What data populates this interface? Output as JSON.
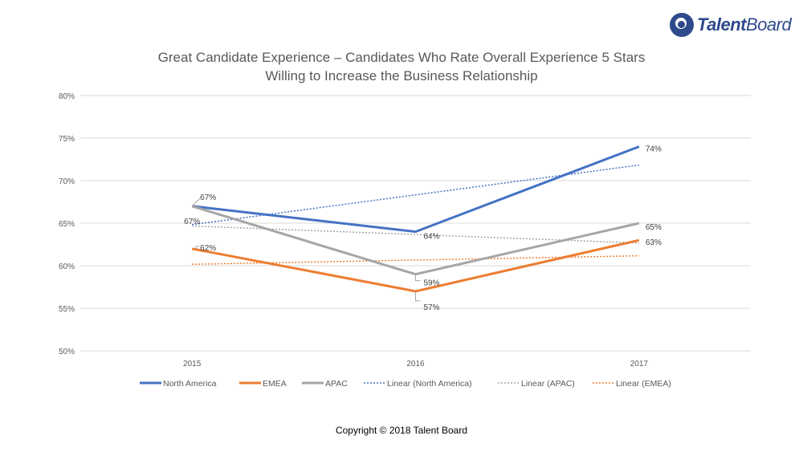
{
  "logo": {
    "bold": "Talent",
    "light": "Board"
  },
  "copyright": "Copyright © 2018 Talent Board",
  "chart_data": {
    "type": "line",
    "title": "Great Candidate Experience – Candidates Who Rate Overall Experience 5 Stars",
    "subtitle": "Willing to Increase the Business Relationship",
    "xlabel": "",
    "ylabel": "",
    "categories": [
      "2015",
      "2016",
      "2017"
    ],
    "ylim": [
      50,
      80
    ],
    "yticks": [
      50,
      55,
      60,
      65,
      70,
      75,
      80
    ],
    "ytick_format": "{v}%",
    "grid": true,
    "legend_position": "bottom",
    "series": [
      {
        "name": "North America",
        "values": [
          67,
          64,
          74
        ],
        "color": "#4472c4",
        "style": "solid",
        "labels": [
          "67%",
          "64%",
          "74%"
        ]
      },
      {
        "name": "EMEA",
        "values": [
          62,
          57,
          63
        ],
        "color": "#ed7d31",
        "style": "solid",
        "labels": [
          "62%",
          "57%",
          "63%"
        ]
      },
      {
        "name": "APAC",
        "values": [
          67,
          59,
          65
        ],
        "color": "#a5a5a5",
        "style": "solid",
        "labels": [
          "67%",
          "59%",
          "65%"
        ]
      }
    ],
    "trendlines": [
      {
        "name": "Linear (North America)",
        "of": "North America",
        "values": [
          64.83,
          71.83
        ],
        "color": "#4472c4",
        "style": "dotted"
      },
      {
        "name": "Linear (APAC)",
        "of": "APAC",
        "values": [
          64.67,
          62.67
        ],
        "color": "#a5a5a5",
        "style": "dotted"
      },
      {
        "name": "Linear (EMEA)",
        "of": "EMEA",
        "values": [
          60.17,
          61.17
        ],
        "color": "#ed7d31",
        "style": "dotted"
      }
    ],
    "legend": [
      "North America",
      "EMEA",
      "APAC",
      "Linear (North America)",
      "Linear (APAC)",
      "Linear (EMEA)"
    ]
  }
}
